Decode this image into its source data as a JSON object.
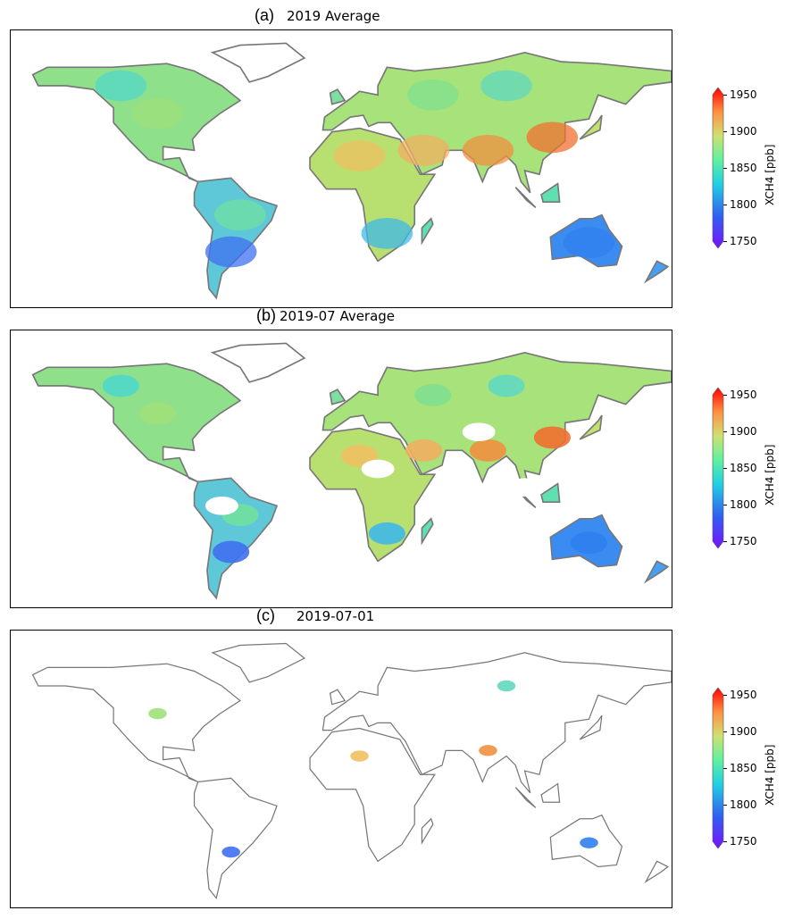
{
  "panels": [
    {
      "label": "(a)",
      "title": "2019 Average",
      "coverage": "full"
    },
    {
      "label": "(b)",
      "title": "2019-07 Average",
      "coverage": "partial"
    },
    {
      "label": "(c)",
      "title": "2019-07-01",
      "coverage": "sparse"
    }
  ],
  "colorbar": {
    "label": "XCH4 [ppb]",
    "ticks": [
      "1950",
      "1900",
      "1850",
      "1800",
      "1750"
    ],
    "range": [
      1750,
      1950
    ],
    "colormap": "rainbow",
    "extend": "both"
  },
  "colors": {
    "coastline": "#777777",
    "low": "#6a00ff",
    "high": "#ff0000"
  }
}
